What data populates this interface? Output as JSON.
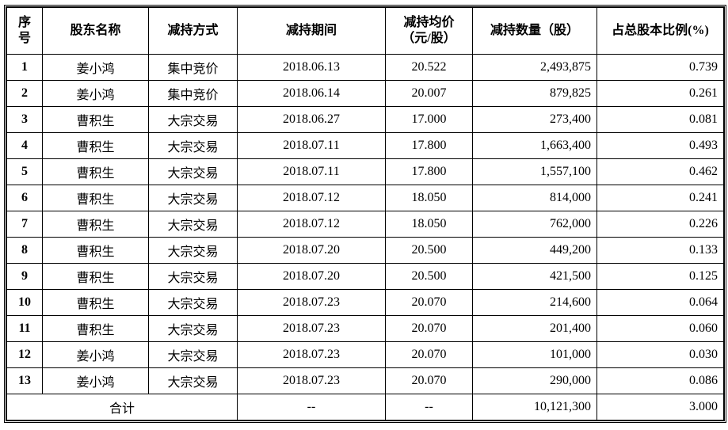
{
  "table": {
    "headers": [
      "序\n号",
      "股东名称",
      "减持方式",
      "减持期间",
      "减持均价\n（元/股）",
      "减持数量（股）",
      "占总股本比例(%)"
    ],
    "rows": [
      [
        "1",
        "姜小鸿",
        "集中竞价",
        "2018.06.13",
        "20.522",
        "2,493,875",
        "0.739"
      ],
      [
        "2",
        "姜小鸿",
        "集中竞价",
        "2018.06.14",
        "20.007",
        "879,825",
        "0.261"
      ],
      [
        "3",
        "曹积生",
        "大宗交易",
        "2018.06.27",
        "17.000",
        "273,400",
        "0.081"
      ],
      [
        "4",
        "曹积生",
        "大宗交易",
        "2018.07.11",
        "17.800",
        "1,663,400",
        "0.493"
      ],
      [
        "5",
        "曹积生",
        "大宗交易",
        "2018.07.11",
        "17.800",
        "1,557,100",
        "0.462"
      ],
      [
        "6",
        "曹积生",
        "大宗交易",
        "2018.07.12",
        "18.050",
        "814,000",
        "0.241"
      ],
      [
        "7",
        "曹积生",
        "大宗交易",
        "2018.07.12",
        "18.050",
        "762,000",
        "0.226"
      ],
      [
        "8",
        "曹积生",
        "大宗交易",
        "2018.07.20",
        "20.500",
        "449,200",
        "0.133"
      ],
      [
        "9",
        "曹积生",
        "大宗交易",
        "2018.07.20",
        "20.500",
        "421,500",
        "0.125"
      ],
      [
        "10",
        "曹积生",
        "大宗交易",
        "2018.07.23",
        "20.070",
        "214,600",
        "0.064"
      ],
      [
        "11",
        "曹积生",
        "大宗交易",
        "2018.07.23",
        "20.070",
        "201,400",
        "0.060"
      ],
      [
        "12",
        "姜小鸿",
        "大宗交易",
        "2018.07.23",
        "20.070",
        "101,000",
        "0.030"
      ],
      [
        "13",
        "姜小鸿",
        "大宗交易",
        "2018.07.23",
        "20.070",
        "290,000",
        "0.086"
      ]
    ],
    "total": {
      "label": "合计",
      "period": "--",
      "price": "--",
      "quantity": "10,121,300",
      "ratio": "3.000"
    }
  }
}
